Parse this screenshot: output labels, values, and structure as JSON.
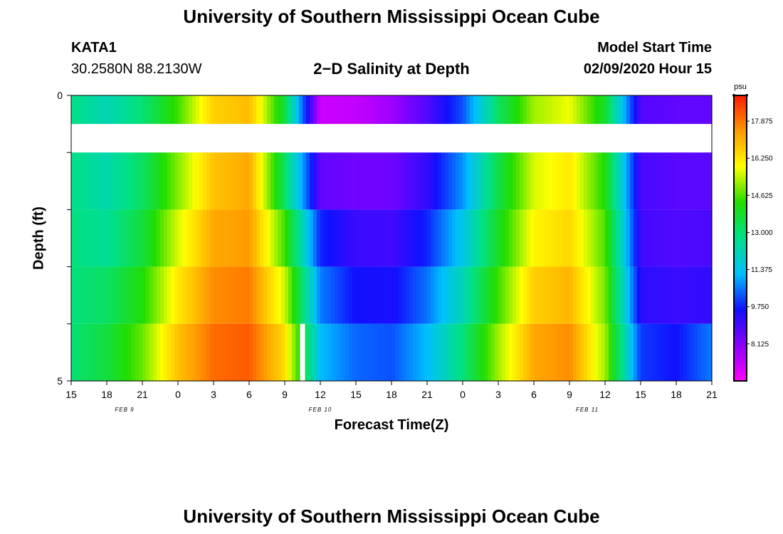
{
  "header": {
    "title": "University of Southern Mississippi Ocean Cube",
    "station_id": "KATA1",
    "station_coords": "30.2580N 88.2130W",
    "chart_title": "2−D Salinity at Depth",
    "model_start_label": "Model Start Time",
    "model_start_value": "02/09/2020 Hour 15"
  },
  "footer": {
    "title": "University of Southern Mississippi Ocean Cube"
  },
  "colors": {
    "colormap": [
      "#ff00ff",
      "#8b00ff",
      "#1010ff",
      "#00bfff",
      "#00e08a",
      "#22dd00",
      "#ffff00",
      "#ff9900",
      "#ff1a00"
    ],
    "marker": "#ffffff"
  },
  "chart_data": {
    "type": "heatmap",
    "title": "2−D Salinity at Depth",
    "xlabel": "Forecast Time(Z)",
    "ylabel": "Depth (ft)",
    "x_ticks": [
      "15",
      "18",
      "21",
      "0",
      "3",
      "6",
      "9",
      "12",
      "15",
      "18",
      "21",
      "0",
      "3",
      "6",
      "9",
      "12",
      "15",
      "18",
      "21"
    ],
    "date_labels": [
      {
        "label": "FEB 9",
        "tick_index": 1.5
      },
      {
        "label": "FEB 10",
        "tick_index": 7
      },
      {
        "label": "FEB 11",
        "tick_index": 14.5
      }
    ],
    "y_ticks": [
      "0",
      "5"
    ],
    "ylim": [
      0,
      5
    ],
    "x_range_hours": [
      0,
      54
    ],
    "colorbar": {
      "unit": "psu",
      "min": 6.5,
      "max": 19.0,
      "ticks": [
        "17.875",
        "16.250",
        "14.625",
        "13.000",
        "11.375",
        "9.750",
        "8.125"
      ]
    },
    "depth_bins": [
      0.5,
      1.5,
      2.5,
      3.5,
      4.5
    ],
    "surface_layer_bin": 0,
    "time_hours": [
      0,
      3,
      6,
      9,
      12,
      15,
      18,
      21,
      24,
      27,
      30,
      33,
      36,
      39,
      42,
      45,
      48,
      51,
      54
    ],
    "salinity_rows": [
      [
        12.8,
        12.2,
        13.0,
        14.5,
        16.6,
        16.9,
        13.6,
        7.2,
        7.3,
        7.8,
        8.8,
        10.2,
        13.2,
        15.2,
        15.8,
        13.8,
        8.8,
        8.6,
        8.6
      ],
      [
        12.8,
        12.3,
        13.2,
        15.0,
        16.8,
        17.2,
        13.2,
        8.6,
        8.4,
        8.4,
        9.2,
        10.8,
        13.5,
        15.6,
        16.2,
        14.2,
        8.9,
        8.7,
        8.7
      ],
      [
        12.9,
        12.6,
        13.6,
        15.6,
        17.2,
        17.4,
        14.5,
        9.8,
        9.1,
        9.0,
        9.8,
        11.5,
        13.9,
        16.0,
        16.5,
        14.6,
        9.0,
        8.8,
        8.9
      ],
      [
        12.9,
        13.2,
        14.2,
        16.2,
        17.6,
        17.8,
        15.5,
        10.6,
        9.6,
        9.5,
        10.5,
        12.2,
        14.5,
        16.6,
        17.0,
        14.9,
        9.3,
        9.1,
        9.2
      ],
      [
        13.0,
        13.6,
        14.8,
        16.8,
        18.0,
        18.2,
        16.4,
        11.2,
        10.4,
        10.2,
        11.2,
        12.9,
        15.2,
        17.2,
        17.6,
        15.2,
        10.0,
        9.6,
        10.6
      ]
    ],
    "marker": {
      "hour": 19.5,
      "depth_bin": 4,
      "note": "white bar"
    }
  }
}
